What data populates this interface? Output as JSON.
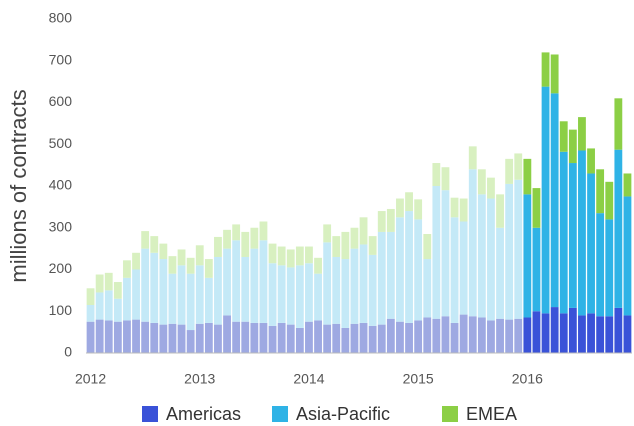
{
  "chart_data": {
    "type": "stacked-bar",
    "y_label": "millions of contracts",
    "categories": [
      "2012",
      null,
      null,
      null,
      null,
      null,
      null,
      null,
      null,
      null,
      null,
      null,
      "2013",
      null,
      null,
      null,
      null,
      null,
      null,
      null,
      null,
      null,
      null,
      null,
      "2014",
      null,
      null,
      null,
      null,
      null,
      null,
      null,
      null,
      null,
      null,
      null,
      "2015",
      null,
      null,
      null,
      null,
      null,
      null,
      null,
      null,
      null,
      null,
      null,
      "2016",
      null,
      null,
      null,
      null,
      null,
      null,
      null,
      null,
      null,
      null,
      null
    ],
    "ylim": [
      0,
      800
    ],
    "yticks": [
      0,
      100,
      200,
      300,
      400,
      500,
      600,
      700,
      800
    ],
    "legend": "bottom",
    "series": [
      {
        "name": "Americas",
        "color": "#3a52d8",
        "muted_color": "#9ea9e2",
        "values": [
          75,
          80,
          78,
          75,
          78,
          80,
          75,
          72,
          68,
          70,
          68,
          55,
          70,
          72,
          68,
          90,
          75,
          75,
          72,
          72,
          65,
          72,
          68,
          60,
          75,
          78,
          68,
          70,
          60,
          70,
          72,
          65,
          68,
          82,
          75,
          72,
          78,
          85,
          82,
          88,
          72,
          92,
          88,
          85,
          78,
          82,
          80,
          82,
          85,
          100,
          95,
          110,
          95,
          108,
          90,
          95,
          88,
          88,
          108,
          90
        ]
      },
      {
        "name": "Asia-Pacific",
        "color": "#2fb3e6",
        "muted_color": "#c4e9f7",
        "values": [
          40,
          65,
          72,
          55,
          102,
          120,
          175,
          168,
          157,
          120,
          142,
          135,
          140,
          108,
          162,
          160,
          195,
          155,
          178,
          198,
          150,
          138,
          137,
          150,
          140,
          112,
          197,
          160,
          165,
          180,
          188,
          170,
          222,
          208,
          250,
          268,
          242,
          140,
          318,
          302,
          253,
          223,
          352,
          295,
          292,
          218,
          325,
          333,
          295,
          200,
          543,
          512,
          387,
          347,
          395,
          335,
          247,
          232,
          379,
          285
        ]
      },
      {
        "name": "EMEA",
        "color": "#8ccf45",
        "muted_color": "#d8f0c0",
        "values": [
          40,
          43,
          42,
          40,
          42,
          40,
          42,
          40,
          37,
          42,
          38,
          38,
          48,
          45,
          48,
          45,
          38,
          60,
          50,
          45,
          47,
          45,
          43,
          45,
          40,
          38,
          43,
          50,
          65,
          50,
          65,
          45,
          50,
          55,
          45,
          45,
          48,
          60,
          55,
          55,
          47,
          55,
          55,
          60,
          50,
          80,
          60,
          63,
          85,
          95,
          82,
          93,
          73,
          80,
          80,
          60,
          105,
          90,
          123,
          55
        ]
      }
    ]
  }
}
